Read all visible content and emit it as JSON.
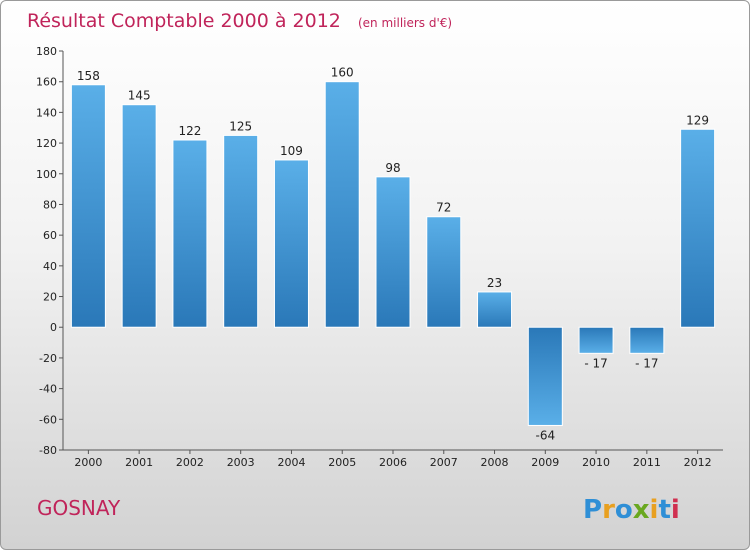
{
  "chart_data": {
    "type": "bar",
    "title": "Résultat Comptable 2000 à 2012",
    "subtitle": "(en milliers d'€)",
    "categories": [
      "2000",
      "2001",
      "2002",
      "2003",
      "2004",
      "2005",
      "2006",
      "2007",
      "2008",
      "2009",
      "2010",
      "2011",
      "2012"
    ],
    "values": [
      158,
      145,
      122,
      125,
      109,
      160,
      98,
      72,
      23,
      -64,
      -17,
      -17,
      129
    ],
    "value_labels": [
      "158",
      "145",
      "122",
      "125",
      "109",
      "160",
      "98",
      "72",
      "23",
      "-64",
      "- 17",
      "- 17",
      "129"
    ],
    "ylim": [
      -80,
      180
    ],
    "yticks": [
      -80,
      -60,
      -40,
      -20,
      0,
      20,
      40,
      60,
      80,
      100,
      120,
      140,
      160,
      180
    ],
    "xlabel": "",
    "ylabel": "",
    "grid": false,
    "bar_color_light": "#5aafe8",
    "bar_color_dark": "#2a78b8"
  },
  "commune": "GOSNAY",
  "logo": {
    "letters": [
      "P",
      "r",
      "o",
      "x",
      "i",
      "t",
      "i"
    ],
    "colors": [
      "#2f8fd6",
      "#e8a020",
      "#2f8fd6",
      "#6aa820",
      "#e8a020",
      "#2f8fd6",
      "#d03050"
    ]
  }
}
